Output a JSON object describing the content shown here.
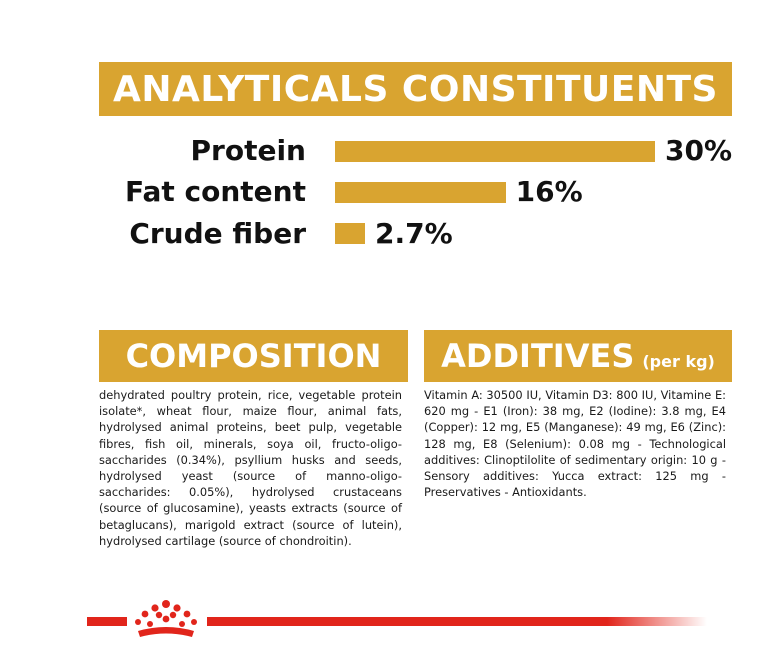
{
  "analytics": {
    "title": "ANALYTICALS CONSTITUENTS",
    "rows": [
      {
        "label": "Protein",
        "value": "30%",
        "percent": 30
      },
      {
        "label": "Fat content",
        "value": "16%",
        "percent": 16
      },
      {
        "label": "Crude fiber",
        "value": "2.7%",
        "percent": 2.7
      }
    ]
  },
  "composition": {
    "title": "COMPOSITION",
    "text": "dehydrated poultry protein, rice, vegetable protein isolate*, wheat flour, maize flour, animal fats, hydrolysed animal proteins, beet pulp, vegetable fibres, fish oil, minerals, soya oil, fructo-oligo-saccharides (0.34%), psyllium husks and seeds, hydrolysed yeast (source of manno-oligo-saccharides: 0.05%), hydrolysed crustaceans (source of glucosamine), yeasts extracts (source of betaglucans), marigold extract (source of lutein), hydrolysed cartilage (source of chondroitin)."
  },
  "additives": {
    "title": "ADDITIVES",
    "subtitle": "(per kg)",
    "text": "Vitamin A: 30500 IU, Vitamin D3: 800 IU, Vitamine E: 620 mg - E1 (Iron): 38 mg, E2 (Iodine): 3.8 mg, E4 (Copper): 12 mg, E5 (Manganese): 49 mg, E6 (Zinc): 128 mg, E8 (Selenium): 0.08 mg - Technological additives: Clinoptilolite of sedimentary origin: 10 g - Sensory additives: Yucca extract: 125 mg - Preservatives - Antioxidants."
  },
  "colors": {
    "accent": "#d9a430",
    "brand_red": "#e1251b"
  }
}
